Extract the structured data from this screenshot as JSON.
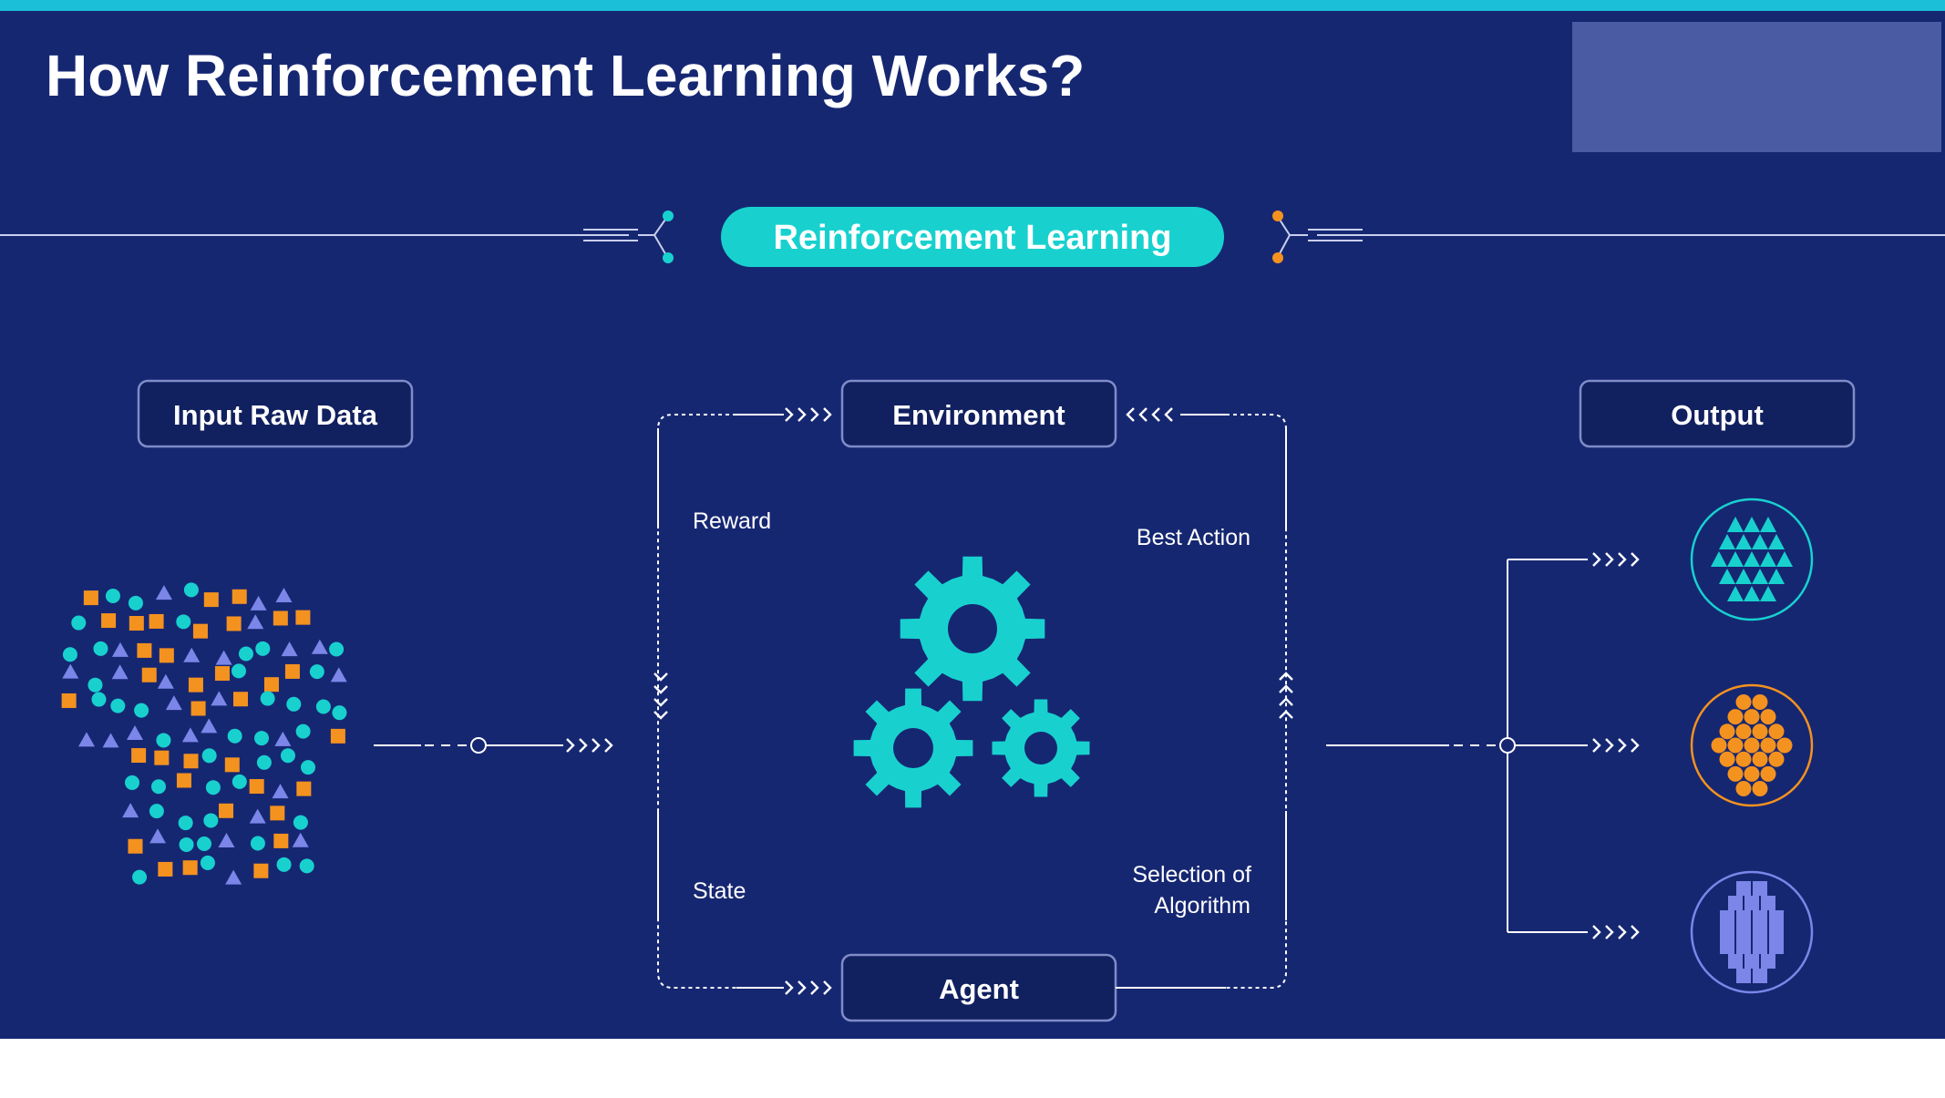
{
  "title": "How Reinforcement Learning Works?",
  "banner": "Reinforcement Learning",
  "boxes": {
    "input": "Input Raw Data",
    "environment": "Environment",
    "agent": "Agent",
    "output": "Output"
  },
  "labels": {
    "reward": "Reward",
    "state": "State",
    "best_action": "Best Action",
    "selection_line1": "Selection of",
    "selection_line2": "Algorithm"
  },
  "outputs": [
    {
      "shape": "triangle",
      "color": "#18d1cf"
    },
    {
      "shape": "circle",
      "color": "#f4921f"
    },
    {
      "shape": "square",
      "color": "#7b86e8"
    }
  ],
  "colors": {
    "background": "#162772",
    "accent": "#18d1cf",
    "orange": "#f4921f",
    "lavender": "#7b86e8",
    "box_fill": "#11205f",
    "box_border": "#7f8cc8"
  },
  "icons": [
    "gear-icon",
    "chevron-right-icon",
    "chevron-down-icon",
    "chevron-up-icon",
    "chevron-left-icon"
  ]
}
